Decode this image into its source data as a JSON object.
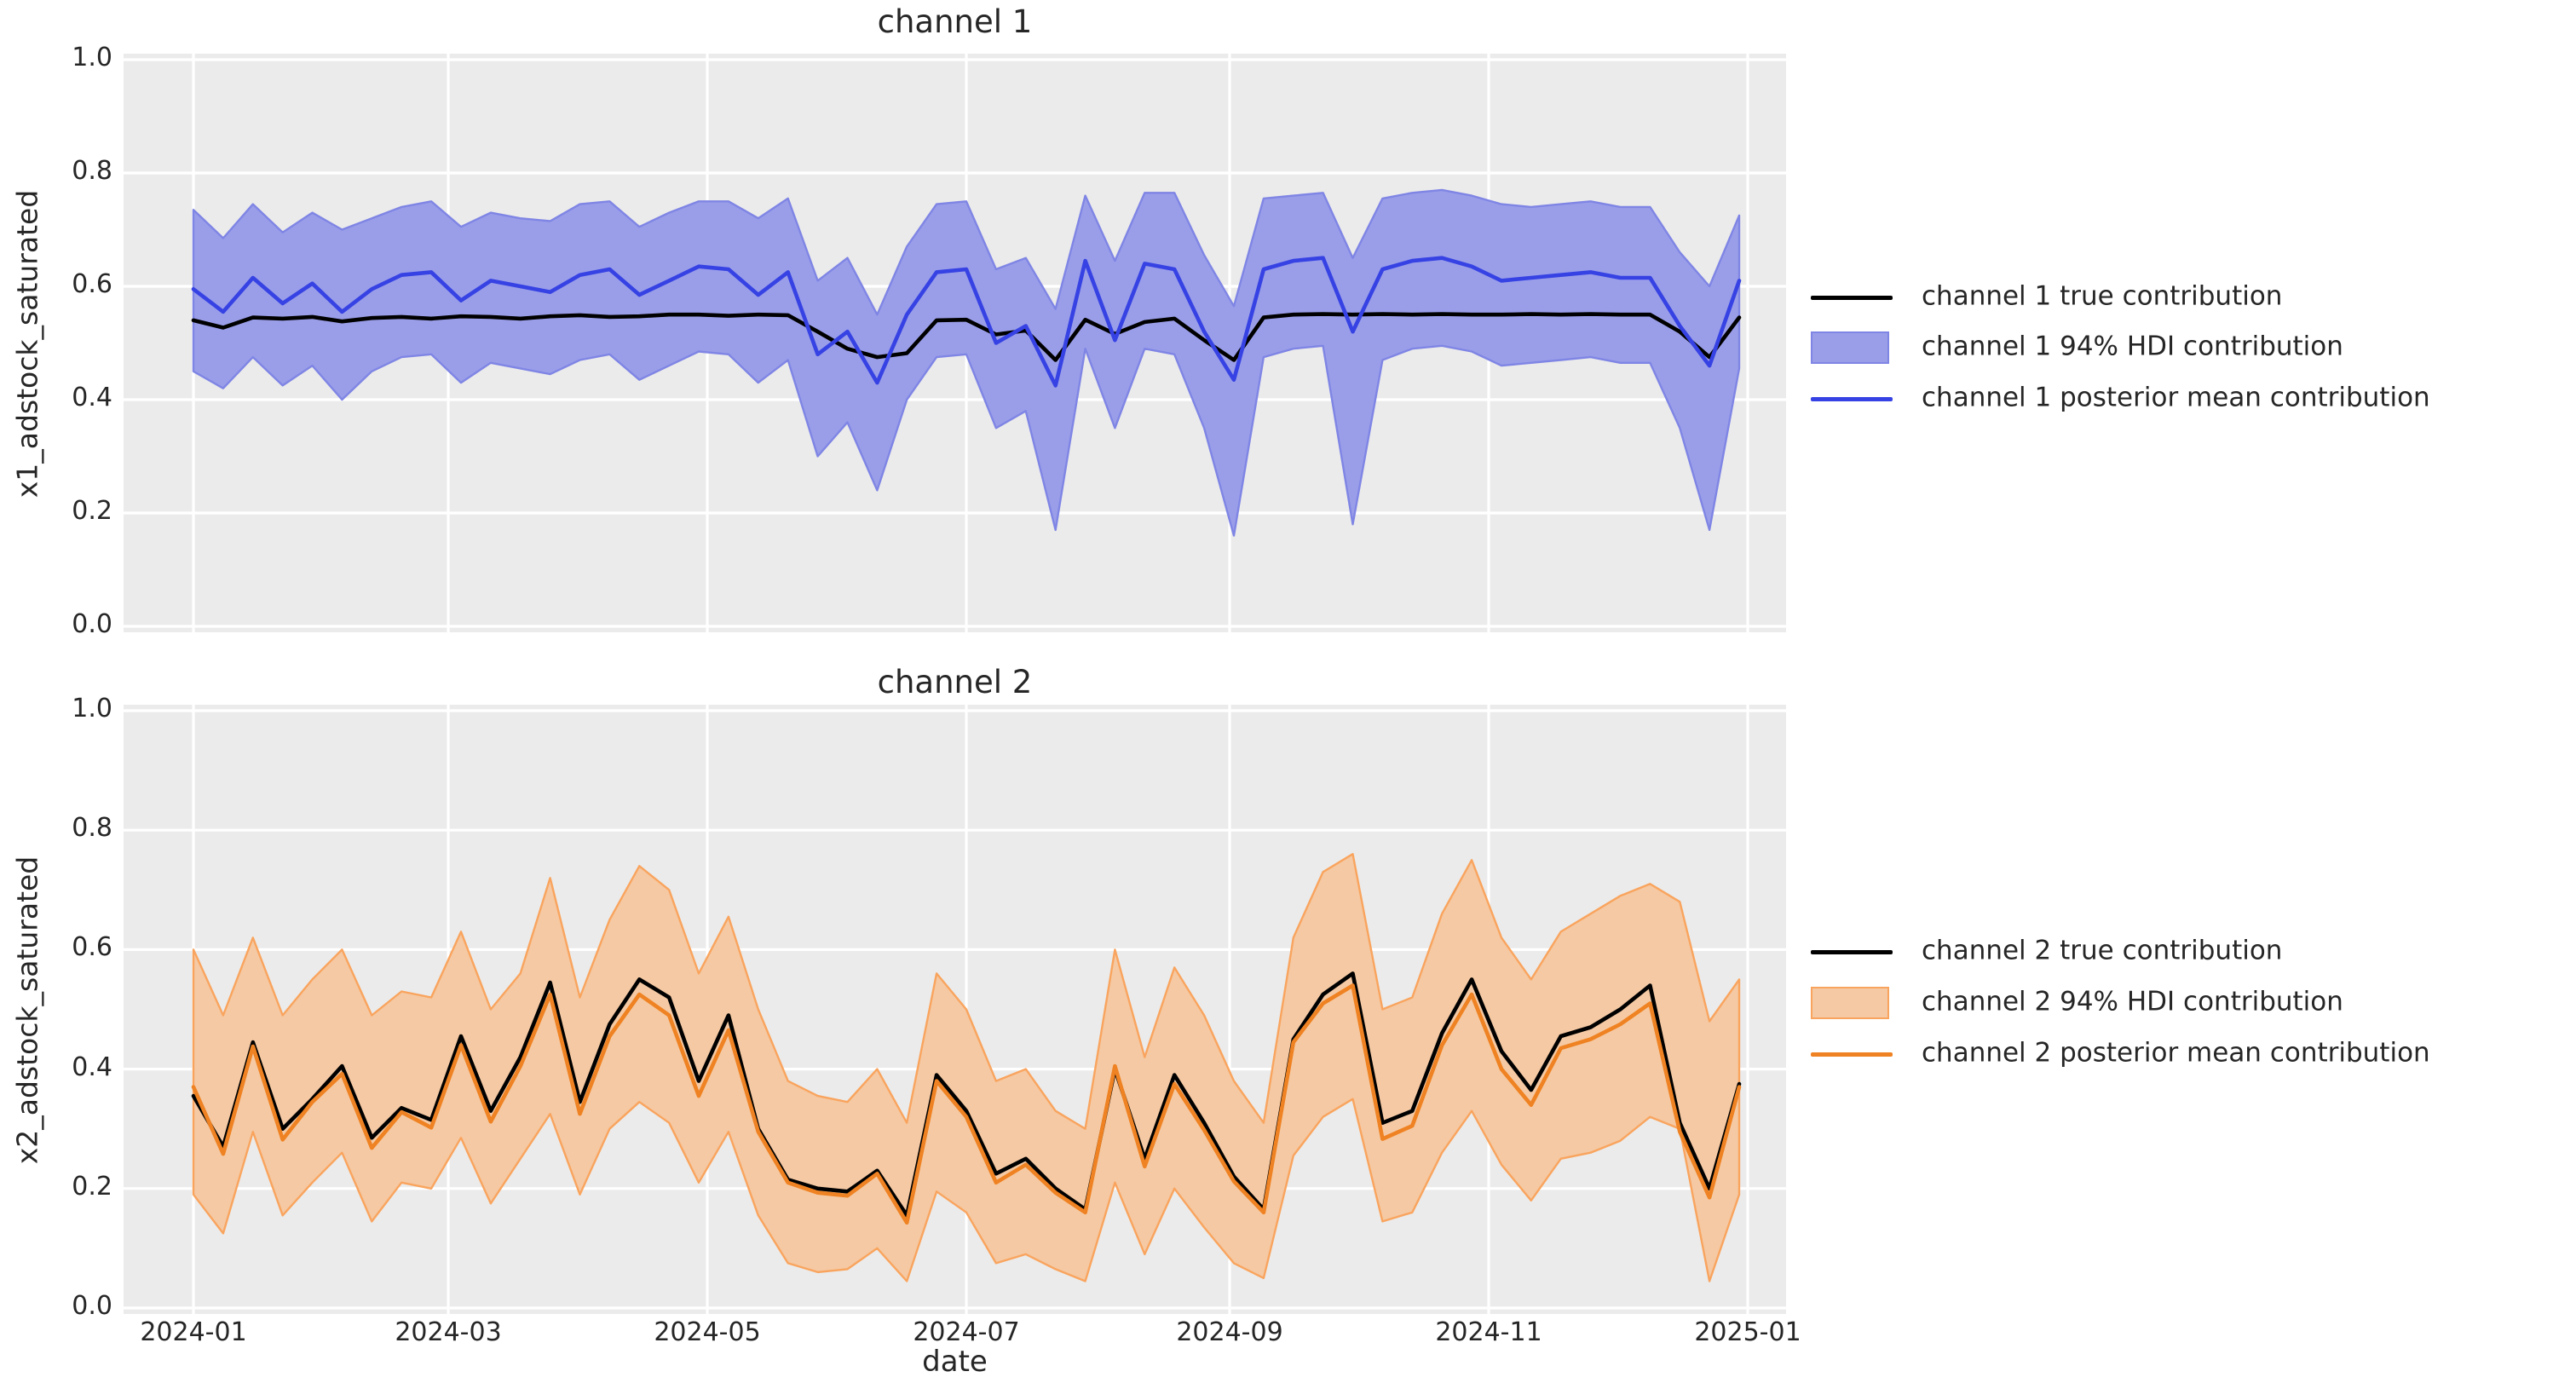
{
  "figure": {
    "background": "#ffffff",
    "axes_background": "#ebebeb",
    "grid_color": "#ffffff",
    "text_color": "#262626"
  },
  "xaxis": {
    "label": "date",
    "ticks": [
      {
        "day": 0,
        "label": "2024-01"
      },
      {
        "day": 60,
        "label": "2024-03"
      },
      {
        "day": 121,
        "label": "2024-05"
      },
      {
        "day": 182,
        "label": "2024-07"
      },
      {
        "day": 244,
        "label": "2024-09"
      },
      {
        "day": 305,
        "label": "2024-11"
      },
      {
        "day": 366,
        "label": "2025-01"
      }
    ]
  },
  "chart_data": [
    {
      "type": "line",
      "title": "channel 1",
      "xlabel": "date",
      "ylabel": "x1_adstock_saturated",
      "ylim": [
        0,
        1
      ],
      "yticks": [
        {
          "value": 0,
          "label": "0.0"
        },
        {
          "value": 0.2,
          "label": "0.2"
        },
        {
          "value": 0.4,
          "label": "0.4"
        },
        {
          "value": 0.6,
          "label": "0.6"
        },
        {
          "value": 0.8,
          "label": "0.8"
        },
        {
          "value": 1.0,
          "label": "1.0"
        }
      ],
      "grid": true,
      "legend_position": "right of plot, vertically centered",
      "x_start": "2024-01-01",
      "x_step_days": 7,
      "n_points": 53,
      "colors": {
        "band_fill": "#9a9ee9",
        "band_edge": "#7f85e4",
        "mean_line": "#3642e3",
        "true_line": "#000000"
      },
      "legend": [
        {
          "type": "line",
          "color": "#000000",
          "label": "channel 1 true contribution"
        },
        {
          "type": "patch",
          "color": "#9a9ee9",
          "label": "channel 1 94% HDI contribution"
        },
        {
          "type": "line",
          "color": "#3642e3",
          "label": "channel 1 posterior mean contribution"
        }
      ],
      "series": [
        {
          "name": "channel 1 true contribution",
          "values": [
            0.54,
            0.527,
            0.545,
            0.543,
            0.546,
            0.538,
            0.544,
            0.546,
            0.543,
            0.547,
            0.546,
            0.543,
            0.547,
            0.549,
            0.546,
            0.547,
            0.55,
            0.55,
            0.548,
            0.55,
            0.549,
            0.52,
            0.49,
            0.475,
            0.482,
            0.54,
            0.541,
            0.515,
            0.522,
            0.47,
            0.541,
            0.516,
            0.537,
            0.543,
            0.505,
            0.47,
            0.545,
            0.55,
            0.551,
            0.55,
            0.551,
            0.55,
            0.551,
            0.55,
            0.55,
            0.551,
            0.55,
            0.551,
            0.55,
            0.55,
            0.52,
            0.475,
            0.545
          ]
        },
        {
          "name": "channel 1 posterior mean contribution",
          "values": [
            0.595,
            0.555,
            0.615,
            0.57,
            0.605,
            0.555,
            0.595,
            0.62,
            0.625,
            0.575,
            0.61,
            0.6,
            0.59,
            0.62,
            0.63,
            0.585,
            0.61,
            0.635,
            0.63,
            0.585,
            0.625,
            0.48,
            0.52,
            0.43,
            0.55,
            0.625,
            0.63,
            0.5,
            0.53,
            0.425,
            0.645,
            0.505,
            0.64,
            0.63,
            0.52,
            0.435,
            0.63,
            0.645,
            0.65,
            0.52,
            0.63,
            0.645,
            0.65,
            0.635,
            0.61,
            0.615,
            0.62,
            0.625,
            0.615,
            0.615,
            0.53,
            0.46,
            0.61
          ]
        },
        {
          "name": "channel 1 94% HDI upper",
          "values": [
            0.735,
            0.685,
            0.745,
            0.695,
            0.73,
            0.7,
            0.72,
            0.74,
            0.75,
            0.705,
            0.73,
            0.72,
            0.715,
            0.745,
            0.75,
            0.705,
            0.73,
            0.75,
            0.75,
            0.72,
            0.755,
            0.61,
            0.65,
            0.55,
            0.67,
            0.745,
            0.75,
            0.63,
            0.65,
            0.56,
            0.76,
            0.645,
            0.765,
            0.765,
            0.655,
            0.565,
            0.755,
            0.76,
            0.765,
            0.65,
            0.755,
            0.765,
            0.77,
            0.76,
            0.745,
            0.74,
            0.745,
            0.75,
            0.74,
            0.74,
            0.66,
            0.6,
            0.725
          ]
        },
        {
          "name": "channel 1 94% HDI lower",
          "values": [
            0.45,
            0.42,
            0.475,
            0.425,
            0.46,
            0.4,
            0.45,
            0.475,
            0.48,
            0.43,
            0.465,
            0.455,
            0.445,
            0.47,
            0.48,
            0.435,
            0.46,
            0.485,
            0.48,
            0.43,
            0.47,
            0.3,
            0.36,
            0.24,
            0.4,
            0.475,
            0.48,
            0.35,
            0.38,
            0.17,
            0.49,
            0.35,
            0.49,
            0.48,
            0.35,
            0.16,
            0.475,
            0.49,
            0.495,
            0.18,
            0.47,
            0.49,
            0.495,
            0.485,
            0.46,
            0.465,
            0.47,
            0.475,
            0.465,
            0.465,
            0.35,
            0.17,
            0.455
          ]
        }
      ]
    },
    {
      "type": "line",
      "title": "channel 2",
      "xlabel": "date",
      "ylabel": "x2_adstock_saturated",
      "ylim": [
        0,
        1
      ],
      "yticks": [
        {
          "value": 0,
          "label": "0.0"
        },
        {
          "value": 0.2,
          "label": "0.2"
        },
        {
          "value": 0.4,
          "label": "0.4"
        },
        {
          "value": 0.6,
          "label": "0.6"
        },
        {
          "value": 0.8,
          "label": "0.8"
        },
        {
          "value": 1.0,
          "label": "1.0"
        }
      ],
      "grid": true,
      "legend_position": "right of plot, vertically centered",
      "x_start": "2024-01-01",
      "x_step_days": 7,
      "n_points": 53,
      "colors": {
        "band_fill": "#f5c9a3",
        "band_edge": "#f9a45e",
        "mean_line": "#ef8222",
        "true_line": "#000000"
      },
      "legend": [
        {
          "type": "line",
          "color": "#000000",
          "label": "channel 2 true contribution"
        },
        {
          "type": "patch",
          "color": "#f5c9a3",
          "label": "channel 2 94% HDI contribution"
        },
        {
          "type": "line",
          "color": "#ef8222",
          "label": "channel 2 posterior mean contribution"
        }
      ],
      "series": [
        {
          "name": "channel 2 true contribution",
          "values": [
            0.355,
            0.27,
            0.445,
            0.3,
            0.35,
            0.405,
            0.285,
            0.335,
            0.315,
            0.455,
            0.33,
            0.42,
            0.545,
            0.345,
            0.475,
            0.55,
            0.52,
            0.38,
            0.49,
            0.3,
            0.215,
            0.2,
            0.195,
            0.23,
            0.155,
            0.39,
            0.33,
            0.225,
            0.25,
            0.2,
            0.165,
            0.4,
            0.25,
            0.39,
            0.31,
            0.22,
            0.165,
            0.45,
            0.525,
            0.56,
            0.31,
            0.33,
            0.46,
            0.55,
            0.43,
            0.365,
            0.455,
            0.47,
            0.5,
            0.54,
            0.31,
            0.2,
            0.375
          ]
        },
        {
          "name": "channel 2 posterior mean contribution",
          "values": [
            0.37,
            0.258,
            0.438,
            0.282,
            0.345,
            0.392,
            0.268,
            0.328,
            0.302,
            0.44,
            0.312,
            0.405,
            0.525,
            0.325,
            0.455,
            0.525,
            0.49,
            0.355,
            0.465,
            0.295,
            0.21,
            0.193,
            0.188,
            0.225,
            0.143,
            0.38,
            0.32,
            0.21,
            0.24,
            0.193,
            0.16,
            0.405,
            0.237,
            0.375,
            0.298,
            0.212,
            0.16,
            0.445,
            0.51,
            0.54,
            0.283,
            0.305,
            0.44,
            0.525,
            0.4,
            0.34,
            0.435,
            0.45,
            0.475,
            0.51,
            0.295,
            0.185,
            0.37
          ]
        },
        {
          "name": "channel 2 94% HDI upper",
          "values": [
            0.6,
            0.49,
            0.62,
            0.49,
            0.55,
            0.6,
            0.49,
            0.53,
            0.52,
            0.63,
            0.5,
            0.56,
            0.72,
            0.52,
            0.65,
            0.74,
            0.7,
            0.56,
            0.655,
            0.5,
            0.38,
            0.355,
            0.345,
            0.4,
            0.31,
            0.56,
            0.5,
            0.38,
            0.4,
            0.33,
            0.3,
            0.6,
            0.42,
            0.57,
            0.49,
            0.38,
            0.31,
            0.62,
            0.73,
            0.76,
            0.5,
            0.52,
            0.66,
            0.75,
            0.62,
            0.55,
            0.63,
            0.66,
            0.69,
            0.71,
            0.68,
            0.48,
            0.55
          ]
        },
        {
          "name": "channel 2 94% HDI lower",
          "values": [
            0.19,
            0.125,
            0.295,
            0.155,
            0.21,
            0.26,
            0.145,
            0.21,
            0.2,
            0.285,
            0.175,
            0.25,
            0.325,
            0.19,
            0.3,
            0.345,
            0.31,
            0.21,
            0.295,
            0.155,
            0.075,
            0.06,
            0.065,
            0.1,
            0.045,
            0.195,
            0.16,
            0.075,
            0.09,
            0.065,
            0.045,
            0.21,
            0.09,
            0.2,
            0.135,
            0.075,
            0.05,
            0.255,
            0.32,
            0.35,
            0.145,
            0.16,
            0.26,
            0.33,
            0.24,
            0.18,
            0.25,
            0.26,
            0.28,
            0.32,
            0.3,
            0.045,
            0.19
          ]
        }
      ]
    }
  ]
}
